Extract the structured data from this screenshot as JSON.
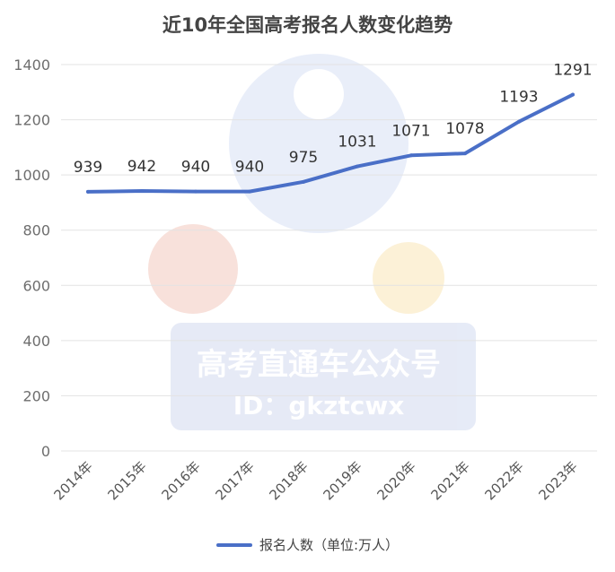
{
  "chart_data": {
    "type": "line",
    "title": "近10年全国高考报名人数变化趋势",
    "categories": [
      "2014年",
      "2015年",
      "2016年",
      "2017年",
      "2018年",
      "2019年",
      "2020年",
      "2021年",
      "2022年",
      "2023年"
    ],
    "series": [
      {
        "name": "报名人数（单位:万人）",
        "values": [
          939,
          942,
          940,
          940,
          975,
          1031,
          1071,
          1078,
          1193,
          1291
        ]
      }
    ],
    "ylim": [
      0,
      1400
    ],
    "yticks": [
      0,
      200,
      400,
      600,
      800,
      1000,
      1200,
      1400
    ],
    "grid": true,
    "legend_position": "bottom",
    "colors": {
      "line": "#4a6fc7",
      "grid": "#e3e3e3"
    }
  },
  "watermark": {
    "text": "高考直通车公众号",
    "id_text": "ID：gkztcwx"
  }
}
